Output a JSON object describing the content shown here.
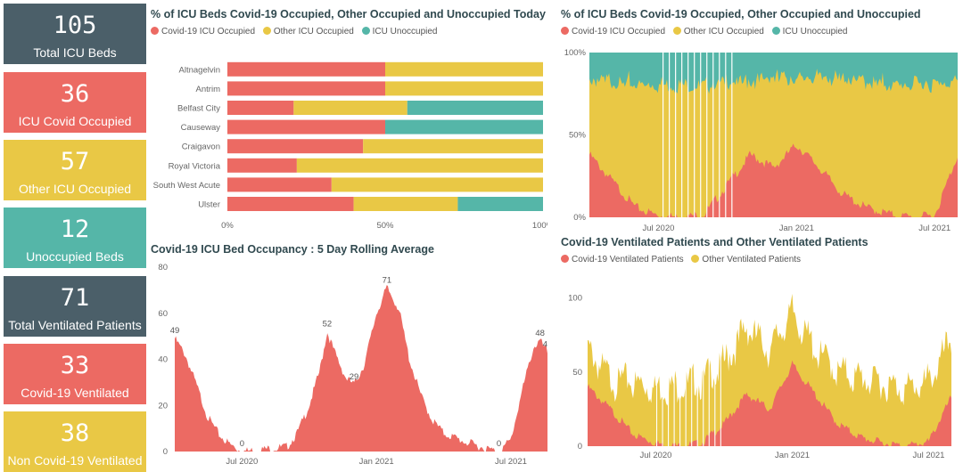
{
  "colors": {
    "covid": "#ec6a63",
    "other": "#e9c845",
    "unocc": "#55b6a8",
    "dark": "#4b5f69"
  },
  "cards": [
    {
      "value": "105",
      "label": "Total ICU Beds",
      "color": "#4b5f69"
    },
    {
      "value": "36",
      "label": "ICU Covid Occupied",
      "color": "#ec6a63"
    },
    {
      "value": "57",
      "label": "Other ICU Occupied",
      "color": "#e9c845"
    },
    {
      "value": "12",
      "label": "Unoccupied Beds",
      "color": "#55b6a8"
    },
    {
      "value": "71",
      "label": "Total Ventilated Patients",
      "color": "#4b5f69"
    },
    {
      "value": "33",
      "label": "Covid-19 Ventilated",
      "color": "#ec6a63"
    },
    {
      "value": "38",
      "label": "Non Covid-19 Ventilated",
      "color": "#e9c845"
    }
  ],
  "chart_data": [
    {
      "type": "bar",
      "orientation": "horizontal-stacked-100",
      "title": "% of ICU Beds Covid-19 Occupied, Other Occupied and Unoccupied Today",
      "legend": [
        "Covid-19 ICU Occupied",
        "Other ICU Occupied",
        "ICU Unoccupied"
      ],
      "categories": [
        "Altnagelvin",
        "Antrim",
        "Belfast City",
        "Causeway",
        "Craigavon",
        "Royal Victoria",
        "South West Acute",
        "Ulster"
      ],
      "series": [
        {
          "name": "Covid-19 ICU Occupied",
          "values": [
            50,
            50,
            21,
            50,
            43,
            22,
            33,
            40
          ]
        },
        {
          "name": "Other ICU Occupied",
          "values": [
            50,
            50,
            36,
            0,
            57,
            78,
            67,
            33
          ]
        },
        {
          "name": "ICU Unoccupied",
          "values": [
            0,
            0,
            43,
            50,
            0,
            0,
            0,
            27
          ]
        }
      ],
      "xticks": [
        "0%",
        "50%",
        "100%"
      ],
      "xlim": [
        0,
        100
      ]
    },
    {
      "type": "area",
      "stacked": "100%",
      "title": "% of ICU Beds Covid-19 Occupied, Other Occupied and Unoccupied",
      "legend": [
        "Covid-19 ICU Occupied",
        "Other ICU Occupied",
        "ICU Unoccupied"
      ],
      "x": [
        "2020-04",
        "2020-05",
        "2020-06",
        "2020-07",
        "2020-08",
        "2020-09",
        "2020-10",
        "2020-11",
        "2020-12",
        "2021-01",
        "2021-02",
        "2021-03",
        "2021-04",
        "2021-05",
        "2021-06",
        "2021-07",
        "2021-08"
      ],
      "series": [
        {
          "name": "Covid-19 ICU Occupied",
          "values": [
            38,
            22,
            6,
            1,
            0,
            2,
            20,
            38,
            30,
            44,
            30,
            14,
            6,
            2,
            0,
            1,
            38
          ]
        },
        {
          "name": "Other ICU Occupied",
          "values": [
            45,
            60,
            74,
            80,
            80,
            78,
            62,
            44,
            55,
            40,
            55,
            70,
            76,
            78,
            80,
            80,
            45
          ]
        },
        {
          "name": "ICU Unoccupied",
          "values": [
            17,
            18,
            20,
            19,
            20,
            20,
            18,
            18,
            15,
            16,
            15,
            16,
            18,
            20,
            20,
            19,
            17
          ]
        }
      ],
      "xticks": [
        "Jul 2020",
        "Jan 2021",
        "Jul 2021"
      ],
      "yticks": [
        "0%",
        "50%",
        "100%"
      ],
      "ylim": [
        0,
        100
      ]
    },
    {
      "type": "area",
      "title": "Covid-19 ICU Bed Occupancy : 5 Day Rolling Average",
      "x": [
        "2020-04-01",
        "2020-04-15",
        "2020-05-01",
        "2020-05-15",
        "2020-06-01",
        "2020-06-15",
        "2020-07-01",
        "2020-08-01",
        "2020-09-01",
        "2020-09-15",
        "2020-10-01",
        "2020-10-15",
        "2020-10-25",
        "2020-11-05",
        "2020-11-20",
        "2020-12-01",
        "2020-12-15",
        "2021-01-01",
        "2021-01-15",
        "2021-02-01",
        "2021-02-15",
        "2021-03-01",
        "2021-03-15",
        "2021-04-01",
        "2021-05-01",
        "2021-06-01",
        "2021-06-15",
        "2021-07-01",
        "2021-07-15",
        "2021-08-01",
        "2021-08-10",
        "2021-08-20"
      ],
      "values": [
        49,
        42,
        28,
        15,
        7,
        3,
        0,
        1,
        2,
        8,
        20,
        35,
        52,
        43,
        32,
        29,
        38,
        60,
        71,
        62,
        40,
        24,
        14,
        8,
        4,
        1,
        0,
        5,
        25,
        45,
        48,
        43
      ],
      "data_labels": [
        {
          "x": "2020-04-01",
          "value": "49"
        },
        {
          "x": "2020-07-01",
          "value": "0"
        },
        {
          "x": "2020-10-25",
          "value": "52"
        },
        {
          "x": "2020-12-01",
          "value": "29"
        },
        {
          "x": "2021-01-15",
          "value": "71"
        },
        {
          "x": "2021-06-15",
          "value": "0"
        },
        {
          "x": "2021-08-10",
          "value": "48"
        },
        {
          "x": "2021-08-20",
          "value": "43"
        }
      ],
      "xticks": [
        "Jul 2020",
        "Jan 2021",
        "Jul 2021"
      ],
      "yticks": [
        "0",
        "20",
        "40",
        "60",
        "80"
      ],
      "ylim": [
        0,
        80
      ]
    },
    {
      "type": "area",
      "stacked": true,
      "title": "Covid-19 Ventilated Patients and Other Ventilated Patients",
      "legend": [
        "Covid-19 Ventilated Patients",
        "Other Ventilated Patients"
      ],
      "x": [
        "2020-04",
        "2020-05",
        "2020-06",
        "2020-07",
        "2020-08",
        "2020-09",
        "2020-10",
        "2020-11",
        "2020-12",
        "2021-01",
        "2021-02",
        "2021-03",
        "2021-04",
        "2021-05",
        "2021-06",
        "2021-07",
        "2021-08"
      ],
      "series": [
        {
          "name": "Covid-19 Ventilated Patients",
          "values": [
            40,
            25,
            8,
            2,
            0,
            2,
            15,
            35,
            25,
            55,
            35,
            15,
            6,
            2,
            0,
            3,
            33
          ]
        },
        {
          "name": "Other Ventilated Patients",
          "values": [
            25,
            20,
            35,
            38,
            40,
            42,
            40,
            45,
            40,
            35,
            30,
            35,
            40,
            40,
            38,
            40,
            38
          ]
        }
      ],
      "xticks": [
        "Jul 2020",
        "Jan 2021",
        "Jul 2021"
      ],
      "yticks": [
        "0",
        "50",
        "100"
      ],
      "ylim": [
        0,
        110
      ]
    }
  ]
}
